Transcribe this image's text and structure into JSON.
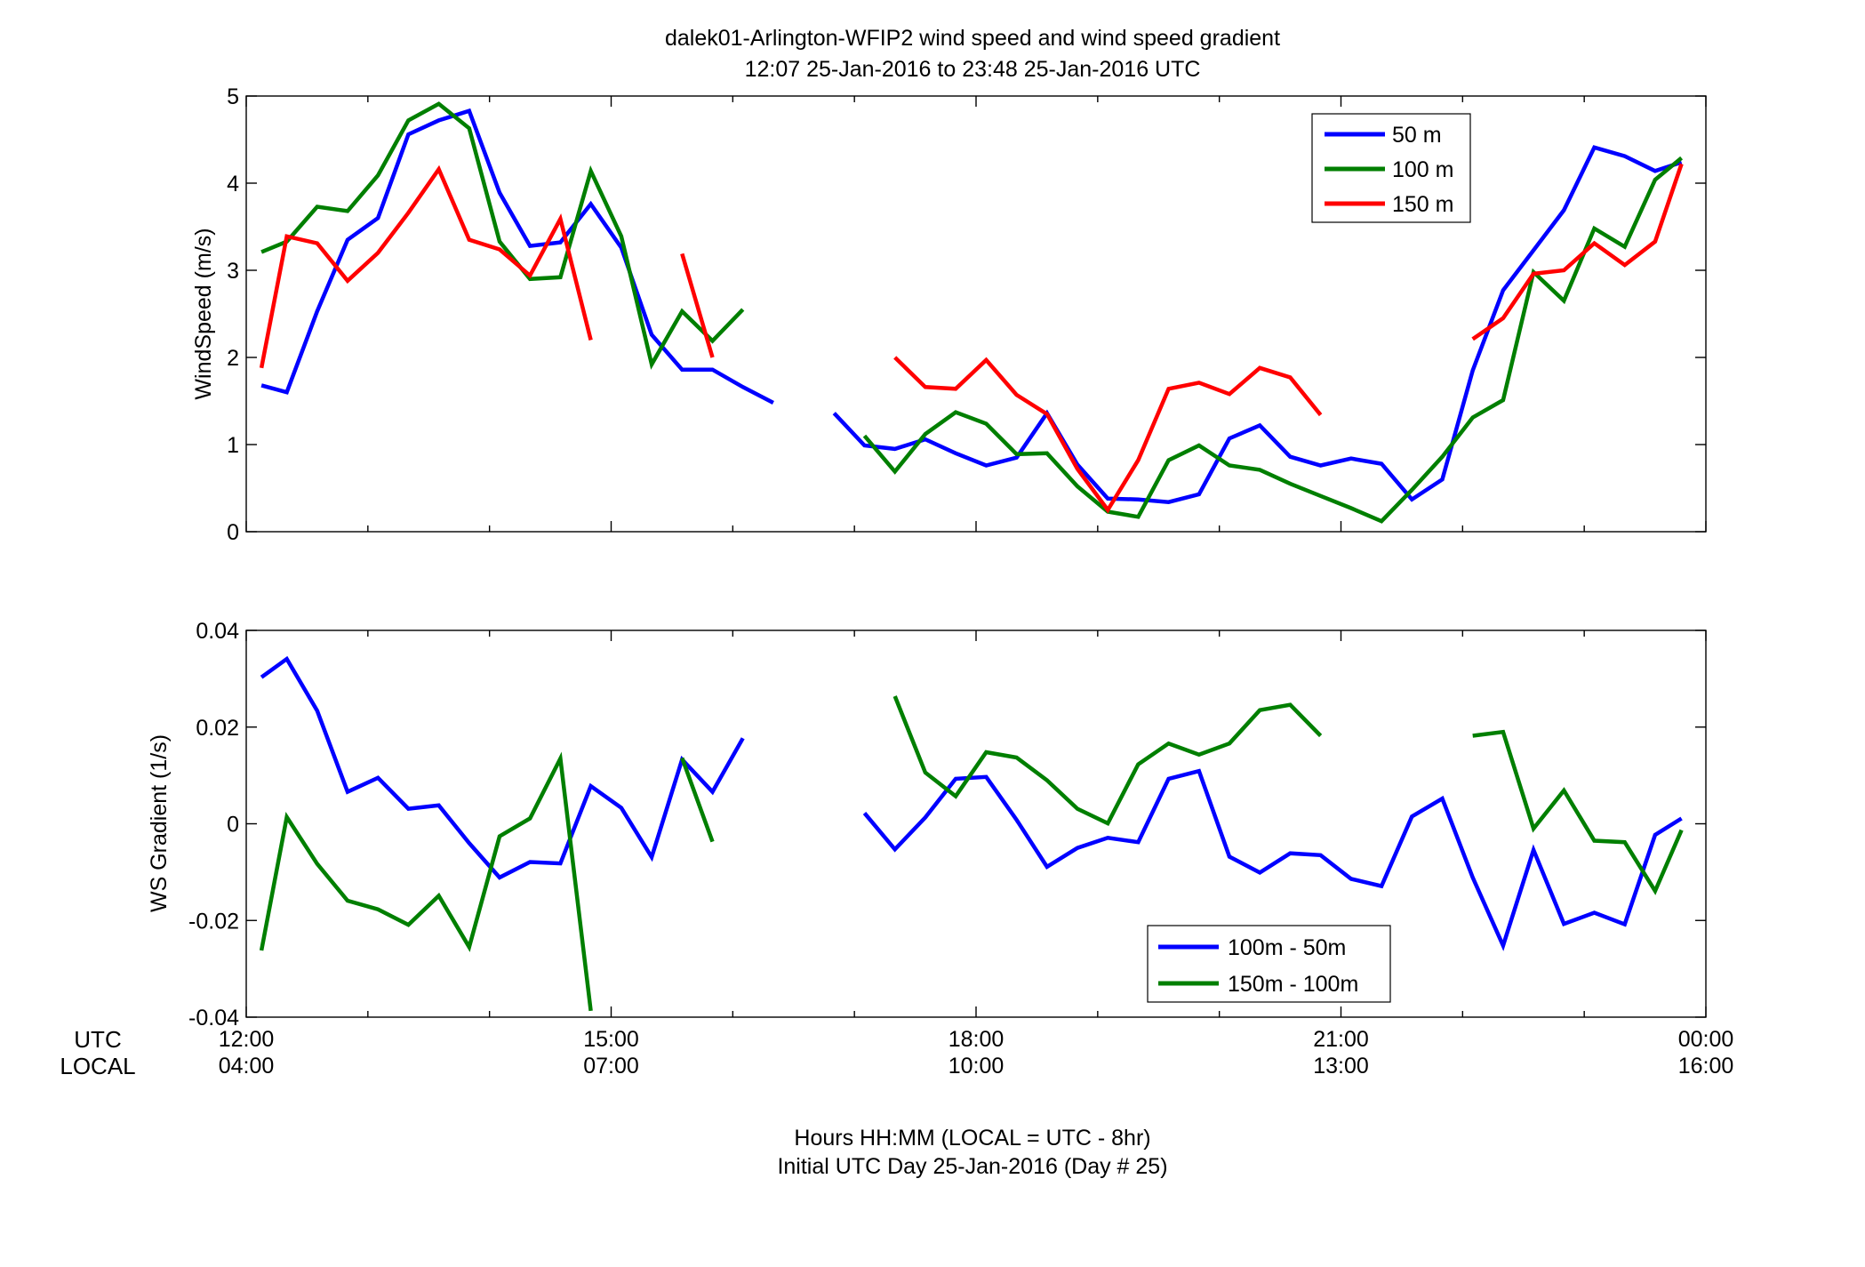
{
  "figure": {
    "title_line1": "dalek01-Arlington-WFIP2  wind speed and wind speed gradient",
    "title_line2": "12:07 25-Jan-2016 to 23:48 25-Jan-2016  UTC",
    "xlabel_line1": "Hours HH:MM  (LOCAL = UTC - 8hr)",
    "xlabel_line2": "Initial UTC Day 25-Jan-2016 (Day # 25)",
    "row_label_utc": "UTC",
    "row_label_local": "LOCAL"
  },
  "chart_data": [
    {
      "type": "line",
      "ylabel": "WindSpeed (m/s)",
      "xlim": [
        12,
        24
      ],
      "ylim": [
        0,
        5
      ],
      "yticks": [
        0,
        1,
        2,
        3,
        4,
        5
      ],
      "ytick_labels": [
        "0",
        "1",
        "2",
        "3",
        "4",
        "5"
      ],
      "grid": false,
      "legend_placement": "top-right",
      "series": [
        {
          "name": "50 m",
          "color": "#0000ff",
          "x": [
            12.125,
            12.333,
            12.583,
            12.833,
            13.083,
            13.333,
            13.583,
            13.833,
            14.083,
            14.333,
            14.583,
            14.833,
            15.083,
            15.333,
            15.583,
            15.833,
            16.083,
            16.333,
            null,
            16.833,
            17.083,
            17.333,
            17.583,
            17.833,
            18.083,
            18.333,
            18.583,
            18.833,
            19.083,
            19.333,
            19.583,
            19.833,
            20.083,
            20.333,
            20.583,
            20.833,
            21.083,
            21.333,
            21.583,
            21.833,
            22.083,
            22.333,
            22.583,
            22.833,
            23.083,
            23.333,
            23.583,
            23.8
          ],
          "y": [
            1.68,
            1.6,
            2.53,
            3.35,
            3.6,
            4.56,
            4.72,
            4.83,
            3.89,
            3.28,
            3.32,
            3.76,
            3.26,
            2.26,
            1.86,
            1.86,
            1.66,
            1.48,
            null,
            1.36,
            0.99,
            0.95,
            1.06,
            0.9,
            0.76,
            0.85,
            1.36,
            0.77,
            0.38,
            0.37,
            0.34,
            0.43,
            1.07,
            1.22,
            0.86,
            0.76,
            0.84,
            0.78,
            0.37,
            0.6,
            1.85,
            2.77,
            3.23,
            3.69,
            4.41,
            4.31,
            4.14,
            4.24
          ]
        },
        {
          "name": "100 m",
          "color": "#007f00",
          "x": [
            12.125,
            12.333,
            12.583,
            12.833,
            13.083,
            13.333,
            13.583,
            13.833,
            14.083,
            14.333,
            14.583,
            14.833,
            15.083,
            15.333,
            15.583,
            15.833,
            16.083,
            null,
            17.083,
            17.333,
            17.583,
            17.833,
            18.083,
            18.333,
            18.583,
            18.833,
            19.083,
            19.333,
            19.583,
            19.833,
            20.083,
            20.333,
            20.583,
            20.833,
            21.083,
            21.333,
            21.583,
            21.833,
            22.083,
            22.333,
            22.583,
            22.833,
            23.083,
            23.333,
            23.583,
            23.8
          ],
          "y": [
            3.21,
            3.33,
            3.73,
            3.68,
            4.09,
            4.72,
            4.91,
            4.63,
            3.33,
            2.9,
            2.92,
            4.14,
            3.39,
            1.92,
            2.53,
            2.19,
            2.55,
            null,
            1.1,
            0.69,
            1.12,
            1.37,
            1.24,
            0.89,
            0.9,
            0.52,
            0.23,
            0.17,
            0.82,
            0.99,
            0.76,
            0.71,
            0.55,
            0.41,
            0.27,
            0.12,
            0.48,
            0.86,
            1.31,
            1.51,
            2.98,
            2.65,
            3.48,
            3.27,
            4.04,
            4.29
          ]
        },
        {
          "name": "150 m",
          "color": "#ff0000",
          "x": [
            12.125,
            12.333,
            12.583,
            12.833,
            13.083,
            13.333,
            13.583,
            13.833,
            14.083,
            14.333,
            14.583,
            14.833,
            null,
            15.583,
            15.833,
            null,
            17.333,
            17.583,
            17.833,
            18.083,
            18.333,
            18.583,
            18.833,
            19.083,
            19.333,
            19.583,
            19.833,
            20.083,
            20.333,
            20.583,
            20.833,
            null,
            22.083,
            22.333,
            22.583,
            22.833,
            23.083,
            23.333,
            23.583,
            23.8
          ],
          "y": [
            1.88,
            3.39,
            3.31,
            2.88,
            3.2,
            3.66,
            4.16,
            3.35,
            3.24,
            2.94,
            3.59,
            2.2,
            null,
            3.19,
            2.0,
            null,
            2.0,
            1.66,
            1.64,
            1.97,
            1.57,
            1.35,
            0.72,
            0.25,
            0.82,
            1.64,
            1.71,
            1.58,
            1.88,
            1.77,
            1.34,
            null,
            2.21,
            2.45,
            2.96,
            3.0,
            3.31,
            3.06,
            3.33,
            4.22
          ]
        }
      ]
    },
    {
      "type": "line",
      "ylabel": "WS Gradient (1/s)",
      "xlim": [
        12,
        24
      ],
      "ylim": [
        -0.04,
        0.04
      ],
      "yticks": [
        -0.04,
        -0.02,
        0,
        0.02,
        0.04
      ],
      "ytick_labels": [
        "-0.04",
        "-0.02",
        "0",
        "0.02",
        "0.04"
      ],
      "xtick_labels_utc": [
        "12:00",
        "15:00",
        "18:00",
        "21:00",
        "00:00"
      ],
      "xtick_labels_local": [
        "04:00",
        "07:00",
        "10:00",
        "13:00",
        "16:00"
      ],
      "grid": false,
      "legend_placement": "bottom-center",
      "series": [
        {
          "name": "100m - 50m",
          "color": "#0000ff",
          "x": [
            12.125,
            12.333,
            12.583,
            12.833,
            13.083,
            13.333,
            13.583,
            13.833,
            14.083,
            14.333,
            14.583,
            14.833,
            15.083,
            15.333,
            15.583,
            15.833,
            16.083,
            null,
            17.083,
            17.333,
            17.583,
            17.833,
            18.083,
            18.333,
            18.583,
            18.833,
            19.083,
            19.333,
            19.583,
            19.833,
            20.083,
            20.333,
            20.583,
            20.833,
            21.083,
            21.333,
            21.583,
            21.833,
            22.083,
            22.333,
            22.583,
            22.833,
            23.083,
            23.333,
            23.583,
            23.8
          ],
          "y": [
            0.0303,
            0.0341,
            0.0234,
            0.0066,
            0.0095,
            0.0031,
            0.0038,
            -0.004,
            -0.0111,
            -0.0079,
            -0.0082,
            0.0078,
            0.0033,
            -0.0069,
            0.0133,
            0.0066,
            0.0177,
            null,
            0.0022,
            -0.0053,
            0.0013,
            0.0093,
            0.0097,
            0.0008,
            -0.0089,
            -0.005,
            -0.0029,
            -0.0038,
            0.0093,
            0.0109,
            -0.0068,
            -0.0101,
            -0.0061,
            -0.0065,
            -0.0114,
            -0.0129,
            0.0015,
            0.0052,
            -0.0111,
            -0.0252,
            -0.0054,
            -0.0207,
            -0.0184,
            -0.0208,
            -0.0023,
            0.0011
          ]
        },
        {
          "name": "150m - 100m",
          "color": "#007f00",
          "x": [
            12.125,
            12.333,
            12.583,
            12.833,
            13.083,
            13.333,
            13.583,
            13.833,
            14.083,
            14.333,
            14.583,
            14.833,
            null,
            15.583,
            15.833,
            null,
            17.333,
            17.583,
            17.833,
            18.083,
            18.333,
            18.583,
            18.833,
            19.083,
            19.333,
            19.583,
            19.833,
            20.083,
            20.333,
            20.583,
            20.833,
            null,
            22.083,
            22.333,
            22.583,
            22.833,
            23.083,
            23.333,
            23.583,
            23.8
          ],
          "y": [
            -0.0262,
            0.0014,
            -0.0083,
            -0.0159,
            -0.0177,
            -0.0209,
            -0.0149,
            -0.0255,
            -0.0026,
            0.0011,
            0.0135,
            -0.0387,
            null,
            0.0136,
            -0.0037,
            null,
            0.0264,
            0.0106,
            0.0057,
            0.0148,
            0.0137,
            0.009,
            0.0031,
            0.0001,
            0.0123,
            0.0166,
            0.0143,
            0.0166,
            0.0235,
            0.0246,
            0.0182,
            null,
            0.0182,
            0.019,
            -0.001,
            0.0069,
            -0.0035,
            -0.0038,
            -0.0139,
            -0.0013
          ]
        }
      ]
    }
  ]
}
